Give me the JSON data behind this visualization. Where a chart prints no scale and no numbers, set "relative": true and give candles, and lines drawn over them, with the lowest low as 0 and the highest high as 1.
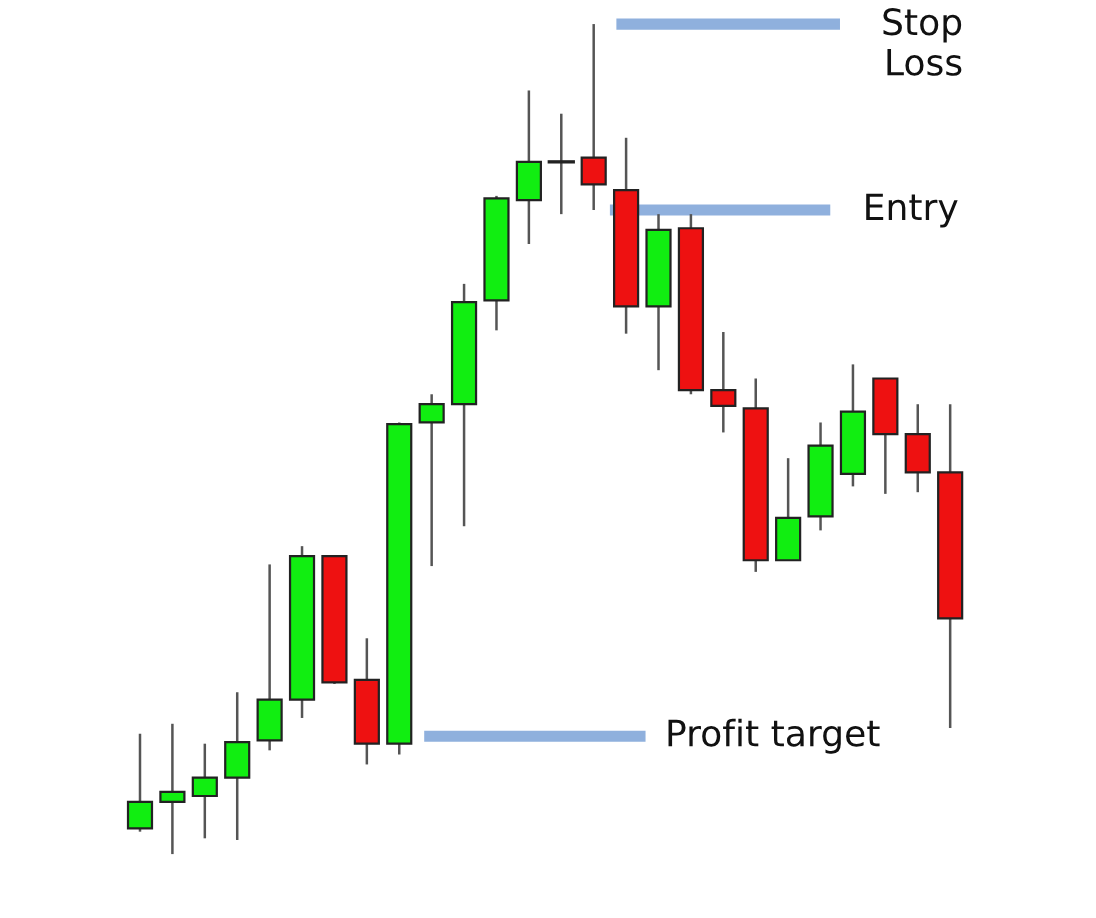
{
  "chart_data": {
    "type": "candlestick",
    "relative": true,
    "categories": [
      null,
      null,
      null,
      null,
      null,
      null,
      null,
      null,
      null,
      null,
      null,
      null,
      null,
      null,
      null,
      null,
      null,
      null,
      null,
      null,
      null,
      null,
      null,
      null,
      null,
      null
    ],
    "ohlc": [
      [
        0.031,
        0.145,
        0.027,
        0.063
      ],
      [
        0.063,
        0.157,
        0.0,
        0.075
      ],
      [
        0.07,
        0.133,
        0.019,
        0.092
      ],
      [
        0.092,
        0.195,
        0.017,
        0.135
      ],
      [
        0.137,
        0.349,
        0.125,
        0.186
      ],
      [
        0.186,
        0.371,
        0.164,
        0.359
      ],
      [
        0.359,
        0.359,
        0.205,
        0.207
      ],
      [
        0.21,
        0.26,
        0.108,
        0.133
      ],
      [
        0.133,
        0.52,
        0.12,
        0.518
      ],
      [
        0.52,
        0.554,
        0.347,
        0.542
      ],
      [
        0.542,
        0.687,
        0.395,
        0.665
      ],
      [
        0.667,
        0.793,
        0.631,
        0.79
      ],
      [
        0.788,
        0.92,
        0.735,
        0.834
      ],
      [
        0.834,
        0.892,
        0.771,
        0.834
      ],
      [
        0.839,
        1.0,
        0.776,
        0.807
      ],
      [
        0.8,
        0.863,
        0.627,
        0.66
      ],
      [
        0.66,
        0.771,
        0.583,
        0.752
      ],
      [
        0.754,
        0.771,
        0.554,
        0.559
      ],
      [
        0.559,
        0.629,
        0.508,
        0.54
      ],
      [
        0.537,
        0.573,
        0.34,
        0.354
      ],
      [
        0.354,
        0.477,
        0.354,
        0.405
      ],
      [
        0.407,
        0.52,
        0.39,
        0.492
      ],
      [
        0.458,
        0.59,
        0.443,
        0.533
      ],
      [
        0.573,
        0.573,
        0.434,
        0.506
      ],
      [
        0.506,
        0.542,
        0.436,
        0.46
      ],
      [
        0.46,
        0.542,
        0.152,
        0.284
      ]
    ],
    "colors": [
      "#11ee11",
      "#11ee11",
      "#11ee11",
      "#11ee11",
      "#11ee11",
      "#11ee11",
      "#ee1111",
      "#ee1111",
      "#11ee11",
      "#11ee11",
      "#11ee11",
      "#11ee11",
      "#11ee11",
      "#222222",
      "#ee1111",
      "#ee1111",
      "#11ee11",
      "#ee1111",
      "#ee1111",
      "#ee1111",
      "#11ee11",
      "#11ee11",
      "#11ee11",
      "#ee1111",
      "#ee1111",
      "#ee1111"
    ],
    "ref_lines": [
      {
        "axis": "y",
        "value": 1.0,
        "label": "Stop\nLoss",
        "color": "#8fb0dd"
      },
      {
        "axis": "y",
        "value": 0.776,
        "label": "Entry",
        "color": "#8fb0dd"
      },
      {
        "axis": "y",
        "value": 0.142,
        "label": "Profit target",
        "color": "#8fb0dd"
      }
    ]
  }
}
